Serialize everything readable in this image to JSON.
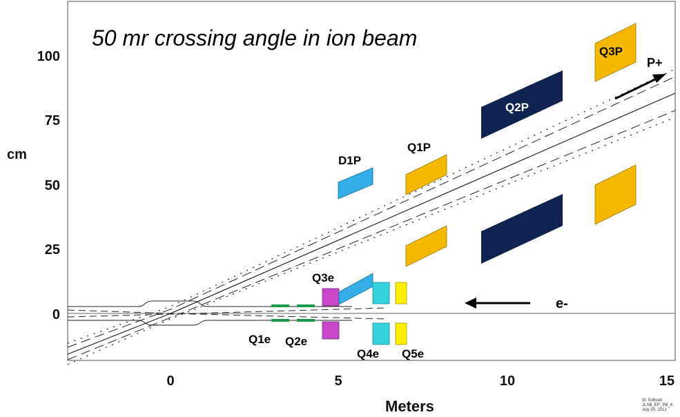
{
  "title": "50 mr crossing angle in ion beam",
  "xlabel": "Meters",
  "ylabel": "cm",
  "x_ticks": [
    "0",
    "5",
    "10",
    "15"
  ],
  "y_ticks": [
    "0",
    "25",
    "50",
    "75",
    "100"
  ],
  "beams": {
    "ion_label": "P+",
    "electron_label": "e-"
  },
  "magnets": [
    {
      "label": "D1P",
      "color": "#33aee6"
    },
    {
      "label": "Q1P",
      "color": "#f7b800"
    },
    {
      "label": "Q2P",
      "color": "#0f2350"
    },
    {
      "label": "Q3P",
      "color": "#f7b800"
    },
    {
      "label": "Q1e",
      "color": "#1a9b4b"
    },
    {
      "label": "Q2e",
      "color": "#1a9b4b"
    },
    {
      "label": "Q3e",
      "color": "#c748c8"
    },
    {
      "label": "Q4e",
      "color": "#36d3de"
    },
    {
      "label": "Q5e",
      "color": "#ffee00"
    }
  ],
  "credit": [
    "M. Sullivan",
    "JLAB_EP_3M_4",
    "July 30, 2012"
  ]
}
